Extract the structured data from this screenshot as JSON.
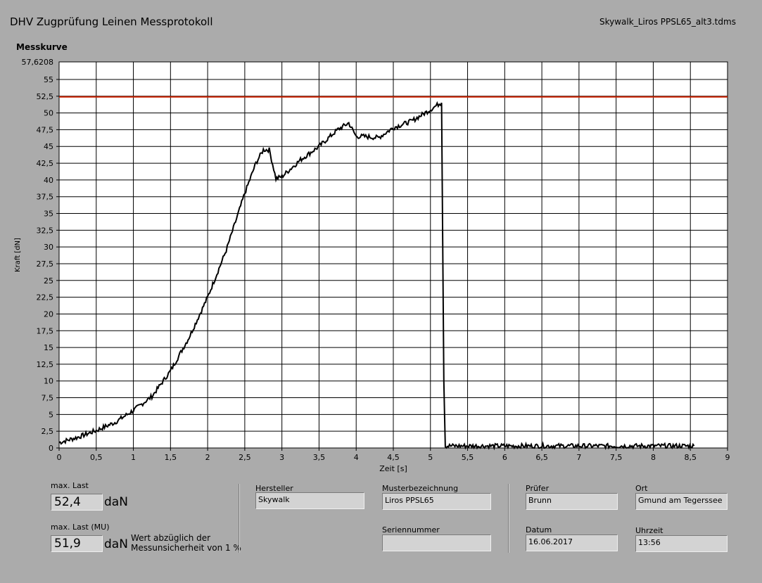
{
  "header": {
    "title": "DHV Zugprüfung Leinen Messprotokoll",
    "filename": "Skywalk_Liros PPSL65_alt3.tdms",
    "section": "Messkurve"
  },
  "chart_data": {
    "type": "line",
    "title": "",
    "xlabel": "Zeit [s]",
    "ylabel": "Kraft [dN]",
    "xlim": [
      0,
      9
    ],
    "ylim": [
      0,
      57.6208
    ],
    "ymax_label": "57,6208",
    "x_ticks": [
      "0",
      "0,5",
      "1",
      "1,5",
      "2",
      "2,5",
      "3",
      "3,5",
      "4",
      "4,5",
      "5",
      "5,5",
      "6",
      "6,5",
      "7",
      "7,5",
      "8",
      "8,5",
      "9"
    ],
    "y_ticks": [
      "0",
      "2,5",
      "5",
      "7,5",
      "10",
      "12,5",
      "15",
      "17,5",
      "20",
      "22,5",
      "25",
      "27,5",
      "30",
      "32,5",
      "35",
      "37,5",
      "40",
      "42,5",
      "45",
      "47,5",
      "50",
      "52,5",
      "55"
    ],
    "grid": true,
    "limit_line": {
      "value": 52.4,
      "color": "#cc2200"
    },
    "line_color": "#000000",
    "series": [
      {
        "x": [
          0,
          0.25,
          0.5,
          0.75,
          1.0,
          1.25,
          1.5,
          1.75,
          2.0,
          2.25,
          2.5,
          2.65,
          2.75,
          2.83,
          2.92,
          3.0,
          3.25,
          3.5,
          3.75,
          3.9,
          4.0,
          4.1,
          4.3,
          4.5,
          4.75,
          5.0,
          5.12,
          5.15,
          5.18,
          5.2,
          5.5,
          6.0,
          6.5,
          7.0,
          7.5,
          8.0,
          8.55
        ],
        "y": [
          0.8,
          1.6,
          2.6,
          3.8,
          5.6,
          7.7,
          11.5,
          16.5,
          22.5,
          29.5,
          38.0,
          42.5,
          44.5,
          44.5,
          40.2,
          40.5,
          43.0,
          45.0,
          47.5,
          48.5,
          46.5,
          46.5,
          46.3,
          47.8,
          48.8,
          50.5,
          51.4,
          51.5,
          10.0,
          0.3,
          0.3,
          0.3,
          0.3,
          0.3,
          0.3,
          0.3,
          0.3
        ]
      }
    ]
  },
  "results": {
    "maxlast_label": "max. Last",
    "maxlast_value": "52,4",
    "maxlast_unit": "daN",
    "maxlast_mu_label": "max. Last (MU)",
    "maxlast_mu_value": "51,9",
    "maxlast_mu_unit": "daN",
    "note_line1": "Wert abzüglich der",
    "note_line2": "Messunsicherheit von 1 %"
  },
  "fields": {
    "hersteller_label": "Hersteller",
    "hersteller_value": "Skywalk",
    "muster_label": "Musterbezeichnung",
    "muster_value": "Liros PPSL65",
    "serien_label": "Seriennummer",
    "serien_value": "",
    "pruefer_label": "Prüfer",
    "pruefer_value": "Brunn",
    "ort_label": "Ort",
    "ort_value": "Gmund am Tegerssee",
    "datum_label": "Datum",
    "datum_value": "16.06.2017",
    "uhrzeit_label": "Uhrzeit",
    "uhrzeit_value": "13:56"
  }
}
